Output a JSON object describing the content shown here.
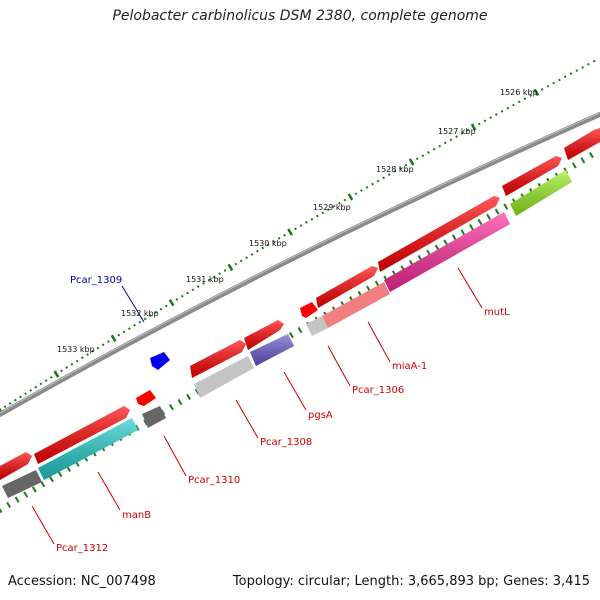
{
  "title": "Pelobacter carbinolicus DSM 2380, complete genome",
  "footer": {
    "accession": "Accession: NC_007498",
    "summary": "Topology: circular; Length: 3,665,893 bp; Genes: 3,415"
  },
  "ruler_labels": [
    "1526 kbp",
    "1527 kbp",
    "1528 kbp",
    "1529 kbp",
    "1530 kbp",
    "1531 kbp",
    "1532 kbp",
    "1533 kbp"
  ],
  "gene_labels": [
    "mutL",
    "miaA-1",
    "Pcar_1306",
    "pgsA",
    "Pcar_1308",
    "Pcar_1309",
    "Pcar_1310",
    "manB",
    "Pcar_1312"
  ],
  "colors": {
    "red": "#ff0000",
    "backbone": "#8a8a8a",
    "ticks": "#1a7a1a",
    "cyan": "#22cccc",
    "magenta": "#ff2a9c",
    "salmon": "#f08080",
    "lime": "#99ee22",
    "violet": "#6a5acd",
    "blue": "#0000ee",
    "gray": "#777777",
    "lightgray": "#c4c4c4"
  }
}
